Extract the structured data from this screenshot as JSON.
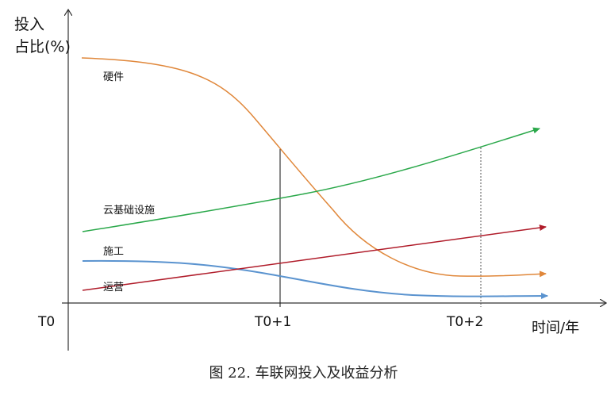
{
  "chart_data": {
    "type": "line",
    "ylabel": [
      "投入",
      "占比(%)"
    ],
    "xlabel": "时间/年",
    "categories": [
      "T0",
      "T0+1",
      "T0+2"
    ],
    "series": [
      {
        "name": "硬件",
        "color": "#e0873a"
      },
      {
        "name": "云基础设施",
        "color": "#2aa84a"
      },
      {
        "name": "施工",
        "color": "#5a93cf"
      },
      {
        "name": "运营",
        "color": "#b01c2a"
      }
    ],
    "grid": false
  },
  "caption": "图 22. 车联网投入及收益分析"
}
